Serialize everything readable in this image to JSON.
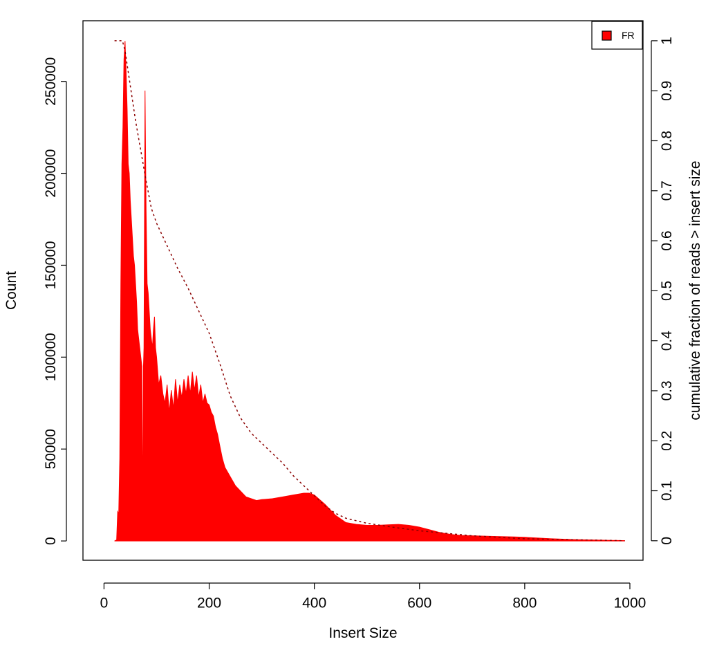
{
  "chart_data": {
    "type": "area",
    "title": "",
    "xlabel": "Insert Size",
    "ylabel": "Count",
    "y2label": "cumulative fraction of reads > insert size",
    "xlim": [
      -40,
      1025
    ],
    "ylim": [
      -10500,
      283000
    ],
    "y2lim": [
      -0.039,
      1.04
    ],
    "x_ticks": [
      0,
      200,
      400,
      600,
      800,
      1000
    ],
    "y_ticks": [
      0,
      50000,
      100000,
      150000,
      200000,
      250000
    ],
    "y_tick_labels": [
      "0",
      "50000",
      "100000",
      "150000",
      "200000",
      "250000"
    ],
    "y2_ticks": [
      0,
      0.1,
      0.2,
      0.3,
      0.4,
      0.5,
      0.6,
      0.7,
      0.8,
      0.9,
      1
    ],
    "y2_tick_labels": [
      "0",
      "0.1",
      "0.2",
      "0.3",
      "0.4",
      "0.5",
      "0.6",
      "0.7",
      "0.8",
      "0.9",
      "1"
    ],
    "grid": false,
    "legend": {
      "position": "top-right",
      "entries": [
        {
          "label": "FR",
          "color": "#ff0000"
        }
      ]
    },
    "series": [
      {
        "name": "FR",
        "axis": "left",
        "style": "histogram",
        "color": "#ff0000",
        "x": [
          20,
          24,
          26,
          28,
          30,
          32,
          34,
          36,
          38,
          40,
          42,
          44,
          46,
          48,
          50,
          52,
          54,
          56,
          58,
          60,
          62,
          64,
          66,
          68,
          70,
          72,
          74,
          75,
          76,
          78,
          80,
          82,
          84,
          86,
          88,
          90,
          92,
          94,
          96,
          98,
          100,
          104,
          108,
          112,
          116,
          120,
          124,
          128,
          132,
          136,
          140,
          144,
          148,
          152,
          156,
          160,
          164,
          168,
          172,
          176,
          180,
          184,
          188,
          192,
          196,
          200,
          204,
          208,
          212,
          216,
          220,
          225,
          230,
          240,
          250,
          260,
          270,
          280,
          290,
          300,
          320,
          340,
          360,
          380,
          390,
          400,
          420,
          440,
          460,
          480,
          500,
          520,
          540,
          560,
          580,
          600,
          620,
          640,
          660,
          680,
          700,
          740,
          780,
          800,
          850,
          900,
          950,
          990
        ],
        "y": [
          0,
          500,
          16000,
          15000,
          45000,
          140000,
          205000,
          225000,
          262000,
          272000,
          255000,
          235000,
          205000,
          200000,
          185000,
          175000,
          165000,
          155000,
          150000,
          140000,
          130000,
          115000,
          110000,
          105000,
          100000,
          95000,
          8000,
          95000,
          105000,
          245000,
          180000,
          140000,
          135000,
          125000,
          115000,
          110000,
          105000,
          115000,
          122000,
          105000,
          100000,
          85000,
          90000,
          80000,
          75000,
          85000,
          70000,
          82000,
          72000,
          88000,
          75000,
          85000,
          78000,
          88000,
          80000,
          90000,
          80000,
          92000,
          82000,
          90000,
          78000,
          85000,
          75000,
          80000,
          75000,
          74000,
          70000,
          68000,
          62000,
          58000,
          52000,
          45000,
          40000,
          35000,
          30000,
          27000,
          24000,
          23000,
          22000,
          22500,
          23000,
          24000,
          25000,
          26000,
          26000,
          25000,
          20000,
          14000,
          10000,
          9000,
          8500,
          8500,
          8800,
          9000,
          8500,
          7500,
          6000,
          4500,
          3500,
          3000,
          2800,
          2500,
          2200,
          2000,
          1200,
          700,
          400,
          200
        ]
      },
      {
        "name": "",
        "axis": "right",
        "style": "dashed-line",
        "color": "#8b0000",
        "x": [
          20,
          35,
          40,
          50,
          60,
          70,
          80,
          90,
          100,
          120,
          140,
          160,
          180,
          200,
          220,
          240,
          260,
          280,
          300,
          320,
          340,
          360,
          380,
          400,
          420,
          440,
          460,
          480,
          500,
          550,
          600,
          650,
          700,
          750,
          800,
          850,
          900,
          950,
          990
        ],
        "y": [
          1.0,
          1.0,
          0.98,
          0.91,
          0.84,
          0.78,
          0.72,
          0.665,
          0.635,
          0.59,
          0.545,
          0.505,
          0.46,
          0.415,
          0.355,
          0.29,
          0.245,
          0.215,
          0.195,
          0.175,
          0.155,
          0.13,
          0.11,
          0.09,
          0.07,
          0.055,
          0.045,
          0.04,
          0.035,
          0.027,
          0.02,
          0.015,
          0.01,
          0.007,
          0.004,
          0.003,
          0.002,
          0.001,
          0.0
        ]
      }
    ]
  }
}
